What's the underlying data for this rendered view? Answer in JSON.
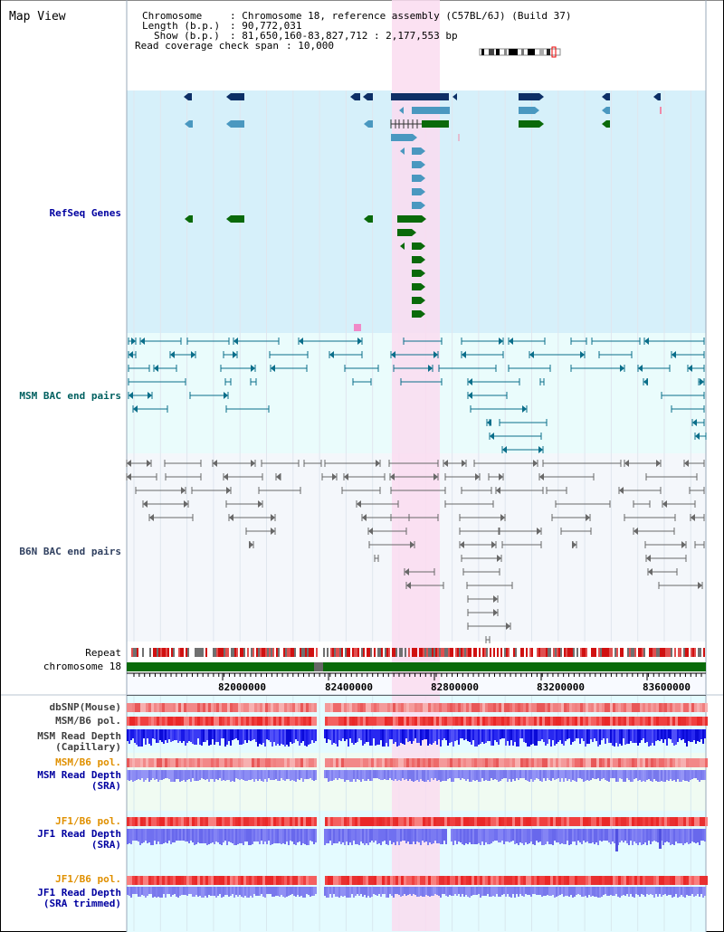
{
  "page": {
    "title": "Map View"
  },
  "info": {
    "chromosome_key": "Chromosome",
    "chromosome_val": ": Chromosome 18, reference assembly (C57BL/6J) (Build 37)",
    "length_key": "Length (b.p.)",
    "length_val": ": 90,772,031",
    "show_key": "Show (b.p.)",
    "show_val": ": 81,650,160-83,827,712 : 2,177,553 bp",
    "coverage_key": "Read coverage check span",
    "coverage_val": ": 10,000"
  },
  "tracks": {
    "refseq": "RefSeq Genes",
    "msm_bac": "MSM BAC end pairs",
    "b6n_bac": "B6N BAC end pairs",
    "repeat": "Repeat",
    "chromosome": "chromosome 18",
    "dbsnp": "dbSNP(Mouse)",
    "msm_pol": "MSM/B6 pol.",
    "msm_depth_cap_1": "MSM Read Depth",
    "msm_depth_cap_2": "(Capillary)",
    "msm_pol_sra": "MSM/B6 pol.",
    "msm_depth_sra_1": "MSM Read Depth",
    "msm_depth_sra_2": "(SRA)",
    "jf1_pol": "JF1/B6 pol.",
    "jf1_depth_1": "JF1 Read Depth",
    "jf1_depth_2": "(SRA)",
    "jf1_pol_trim": "JF1/B6 pol.",
    "jf1_depth_trim_1": "JF1 Read Depth",
    "jf1_depth_trim_2": "(SRA trimmed)"
  },
  "ruler": {
    "labels": [
      "82000000",
      "82400000",
      "82800000",
      "83200000",
      "83600000"
    ]
  },
  "colors": {
    "refseq_bg": "#d6f0fa",
    "bac_bg": "#eafcfc",
    "b6n_bg": "#f4f7fb",
    "highlight": "#fadcf0",
    "dark_blue": "#0d2f66",
    "mid_blue": "#4a98c0",
    "green": "#0a6a0a",
    "msm_label": "#006060",
    "b6n_label": "#304060",
    "blue_label": "#0000a0",
    "orange_label": "#e09000"
  }
}
